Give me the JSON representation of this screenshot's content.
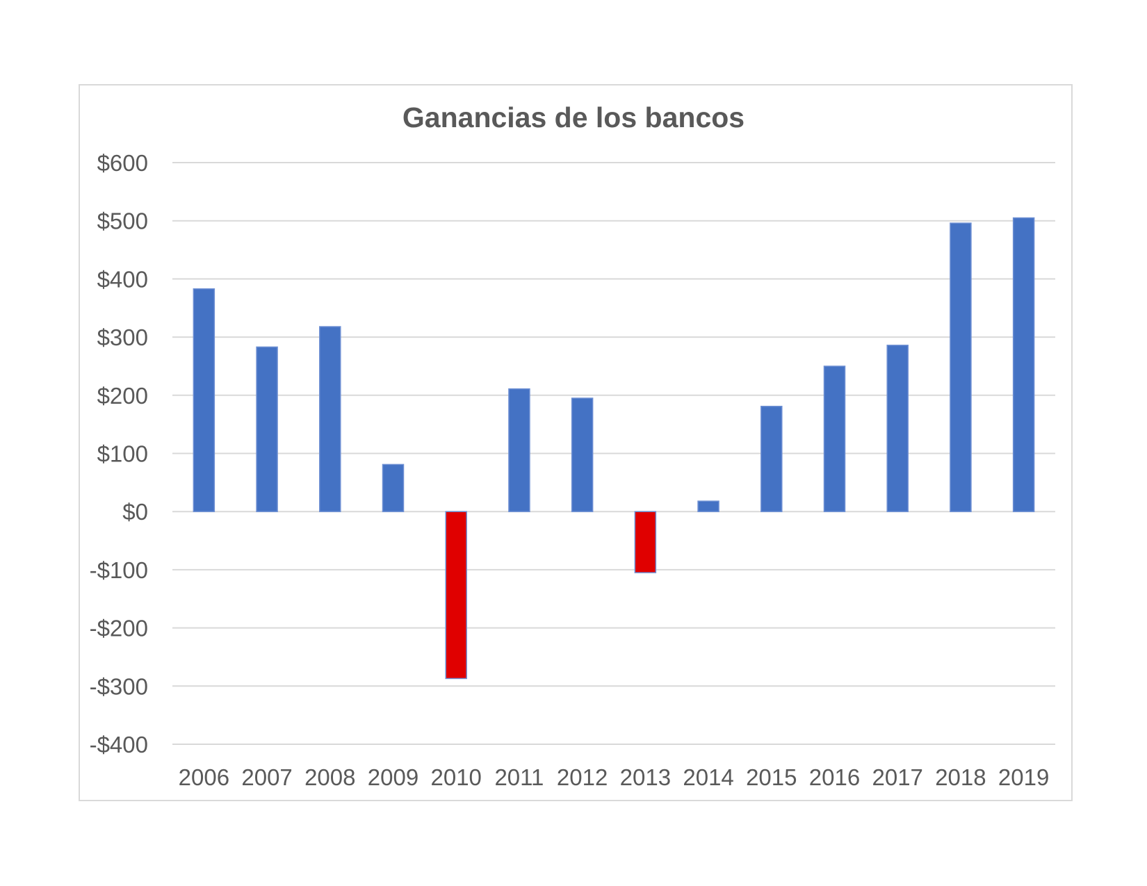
{
  "chart_data": {
    "type": "bar",
    "title": "Ganancias de los bancos",
    "xlabel": "",
    "ylabel": "",
    "categories": [
      "2006",
      "2007",
      "2008",
      "2009",
      "2010",
      "2011",
      "2012",
      "2013",
      "2014",
      "2015",
      "2016",
      "2017",
      "2018",
      "2019"
    ],
    "values": [
      383,
      283,
      318,
      81,
      -287,
      211,
      195,
      -105,
      18,
      181,
      250,
      286,
      496,
      505
    ],
    "ylim": [
      -400,
      600
    ],
    "yticks": [
      600,
      500,
      400,
      300,
      200,
      100,
      0,
      -100,
      -200,
      -300,
      -400
    ],
    "ytick_labels": [
      "$600",
      "$500",
      "$400",
      "$300",
      "$200",
      "$100",
      "$0",
      "-$100",
      "-$200",
      "-$300",
      "-$400"
    ],
    "grid": true,
    "legend": "none",
    "colors": {
      "positive": "#4472c4",
      "negative": "#e00000",
      "gridline": "#d9d9d9",
      "text": "#595959"
    }
  }
}
